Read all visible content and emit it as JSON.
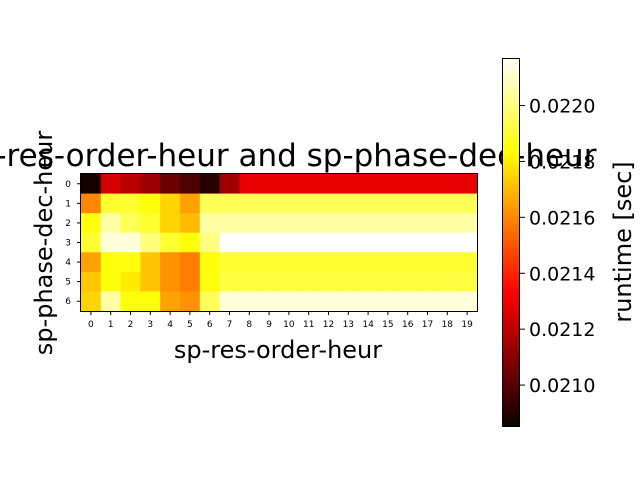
{
  "chart_data": {
    "type": "heatmap",
    "title": "sp-res-order-heur and sp-phase-dec-heur",
    "xlabel": "sp-res-order-heur",
    "ylabel": "sp-phase-dec-heur",
    "x_categories": [
      "0",
      "1",
      "2",
      "3",
      "4",
      "5",
      "6",
      "7",
      "8",
      "9",
      "10",
      "11",
      "12",
      "13",
      "14",
      "15",
      "16",
      "17",
      "18",
      "19"
    ],
    "y_categories": [
      "0",
      "1",
      "2",
      "3",
      "4",
      "5",
      "6"
    ],
    "values": [
      [
        0.02087,
        0.02123,
        0.02118,
        0.02113,
        0.02103,
        0.02098,
        0.0209,
        0.02113,
        0.02127,
        0.02127,
        0.02127,
        0.02127,
        0.02127,
        0.02127,
        0.02127,
        0.02127,
        0.02127,
        0.02127,
        0.02127,
        0.02127
      ],
      [
        0.0216,
        0.0219,
        0.0219,
        0.02185,
        0.02175,
        0.02165,
        0.02195,
        0.02195,
        0.02195,
        0.02195,
        0.02195,
        0.02195,
        0.02195,
        0.02195,
        0.02195,
        0.02195,
        0.02195,
        0.02195,
        0.02195,
        0.02195
      ],
      [
        0.02185,
        0.02205,
        0.02195,
        0.0219,
        0.02175,
        0.0217,
        0.02205,
        0.02205,
        0.02205,
        0.02205,
        0.02205,
        0.02205,
        0.02205,
        0.02205,
        0.02205,
        0.02205,
        0.02205,
        0.02205,
        0.02205,
        0.02205
      ],
      [
        0.0219,
        0.02212,
        0.02212,
        0.022,
        0.0219,
        0.02185,
        0.022,
        0.02218,
        0.02218,
        0.02218,
        0.02218,
        0.02218,
        0.02218,
        0.02218,
        0.02218,
        0.02218,
        0.02218,
        0.02218,
        0.02218,
        0.02218
      ],
      [
        0.02165,
        0.02185,
        0.02185,
        0.02172,
        0.02162,
        0.02158,
        0.02185,
        0.0219,
        0.0219,
        0.0219,
        0.0219,
        0.0219,
        0.0219,
        0.0219,
        0.0219,
        0.0219,
        0.0219,
        0.0219,
        0.0219,
        0.0219
      ],
      [
        0.02172,
        0.02185,
        0.0218,
        0.02172,
        0.02162,
        0.02158,
        0.02185,
        0.02192,
        0.02192,
        0.02192,
        0.02192,
        0.02192,
        0.02192,
        0.02192,
        0.02192,
        0.02192,
        0.02192,
        0.02192,
        0.02192,
        0.02192
      ],
      [
        0.02175,
        0.02205,
        0.02185,
        0.02185,
        0.02165,
        0.02162,
        0.02195,
        0.02212,
        0.02212,
        0.02212,
        0.02212,
        0.02212,
        0.02212,
        0.02212,
        0.02212,
        0.02212,
        0.02212,
        0.02212,
        0.02212,
        0.02212
      ]
    ],
    "colormap": "hot",
    "colorbar": {
      "label": "runtime [sec]",
      "range": [
        0.02085,
        0.02217
      ],
      "ticks": [
        "0.0210",
        "0.0212",
        "0.0214",
        "0.0216",
        "0.0218",
        "0.0220"
      ],
      "tick_values": [
        0.021,
        0.0212,
        0.0214,
        0.0216,
        0.0218,
        0.022
      ]
    }
  }
}
